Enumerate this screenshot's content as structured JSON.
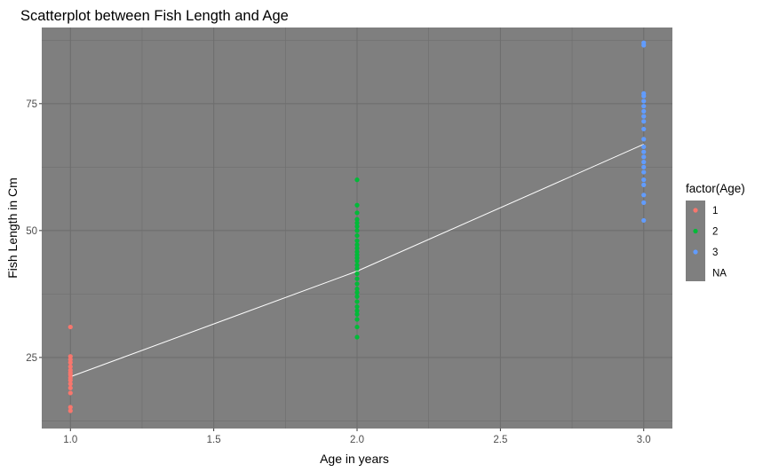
{
  "chart_data": {
    "type": "scatter",
    "title": "Scatterplot between Fish Length and Age",
    "xlabel": "Age in years",
    "ylabel": "Fish Length in Cm",
    "xlim": [
      0.9,
      3.1
    ],
    "ylim": [
      11,
      90
    ],
    "x_ticks": [
      1.0,
      1.5,
      2.0,
      2.5,
      3.0
    ],
    "x_tick_labels": [
      "1.0",
      "1.5",
      "2.0",
      "2.5",
      "3.0"
    ],
    "y_ticks": [
      25,
      50,
      75
    ],
    "y_tick_labels": [
      "25",
      "50",
      "75"
    ],
    "grid": true,
    "panel_background": "#7f7f7f",
    "grid_color": "#6e6e6e",
    "legend": {
      "title": "factor(Age)",
      "placement": "right",
      "background": "#7f7f7f",
      "entries": [
        {
          "label": "1",
          "color": "#f8766d"
        },
        {
          "label": "2",
          "color": "#00ba38"
        },
        {
          "label": "3",
          "color": "#619cff"
        },
        {
          "label": "NA",
          "color": null
        }
      ]
    },
    "series": [
      {
        "name": "1",
        "color": "#f8766d",
        "points": [
          [
            1,
            14.5
          ],
          [
            1,
            15.2
          ],
          [
            1,
            18.0
          ],
          [
            1,
            19.0
          ],
          [
            1,
            19.8
          ],
          [
            1,
            20.5
          ],
          [
            1,
            21.0
          ],
          [
            1,
            21.6
          ],
          [
            1,
            22.0
          ],
          [
            1,
            22.5
          ],
          [
            1,
            23.2
          ],
          [
            1,
            24.0
          ],
          [
            1,
            24.6
          ],
          [
            1,
            25.2
          ],
          [
            1,
            31.0
          ]
        ]
      },
      {
        "name": "2",
        "color": "#00ba38",
        "points": [
          [
            2,
            29.0
          ],
          [
            2,
            31.0
          ],
          [
            2,
            32.5
          ],
          [
            2,
            33.5
          ],
          [
            2,
            34.2
          ],
          [
            2,
            35.0
          ],
          [
            2,
            36.0
          ],
          [
            2,
            37.0
          ],
          [
            2,
            37.8
          ],
          [
            2,
            38.5
          ],
          [
            2,
            39.5
          ],
          [
            2,
            40.5
          ],
          [
            2,
            41.5
          ],
          [
            2,
            42.5
          ],
          [
            2,
            43.2
          ],
          [
            2,
            44.0
          ],
          [
            2,
            44.6
          ],
          [
            2,
            45.2
          ],
          [
            2,
            45.8
          ],
          [
            2,
            46.5
          ],
          [
            2,
            47.2
          ],
          [
            2,
            48.0
          ],
          [
            2,
            49.0
          ],
          [
            2,
            50.0
          ],
          [
            2,
            50.8
          ],
          [
            2,
            51.5
          ],
          [
            2,
            52.2
          ],
          [
            2,
            53.5
          ],
          [
            2,
            55.0
          ],
          [
            2,
            60.0
          ]
        ]
      },
      {
        "name": "3",
        "color": "#619cff",
        "points": [
          [
            3,
            52.0
          ],
          [
            3,
            55.5
          ],
          [
            3,
            57.0
          ],
          [
            3,
            59.0
          ],
          [
            3,
            60.0
          ],
          [
            3,
            61.5
          ],
          [
            3,
            62.5
          ],
          [
            3,
            63.5
          ],
          [
            3,
            64.5
          ],
          [
            3,
            65.5
          ],
          [
            3,
            66.5
          ],
          [
            3,
            68.0
          ],
          [
            3,
            70.0
          ],
          [
            3,
            71.5
          ],
          [
            3,
            72.5
          ],
          [
            3,
            73.5
          ],
          [
            3,
            74.5
          ],
          [
            3,
            75.5
          ],
          [
            3,
            76.5
          ],
          [
            3,
            77.0
          ],
          [
            3,
            86.5
          ],
          [
            3,
            87.0
          ]
        ]
      }
    ],
    "trend_line": {
      "color": "#ffffff",
      "points": [
        [
          1,
          21.2
        ],
        [
          2,
          42.0
        ],
        [
          3,
          67.0
        ]
      ]
    }
  }
}
